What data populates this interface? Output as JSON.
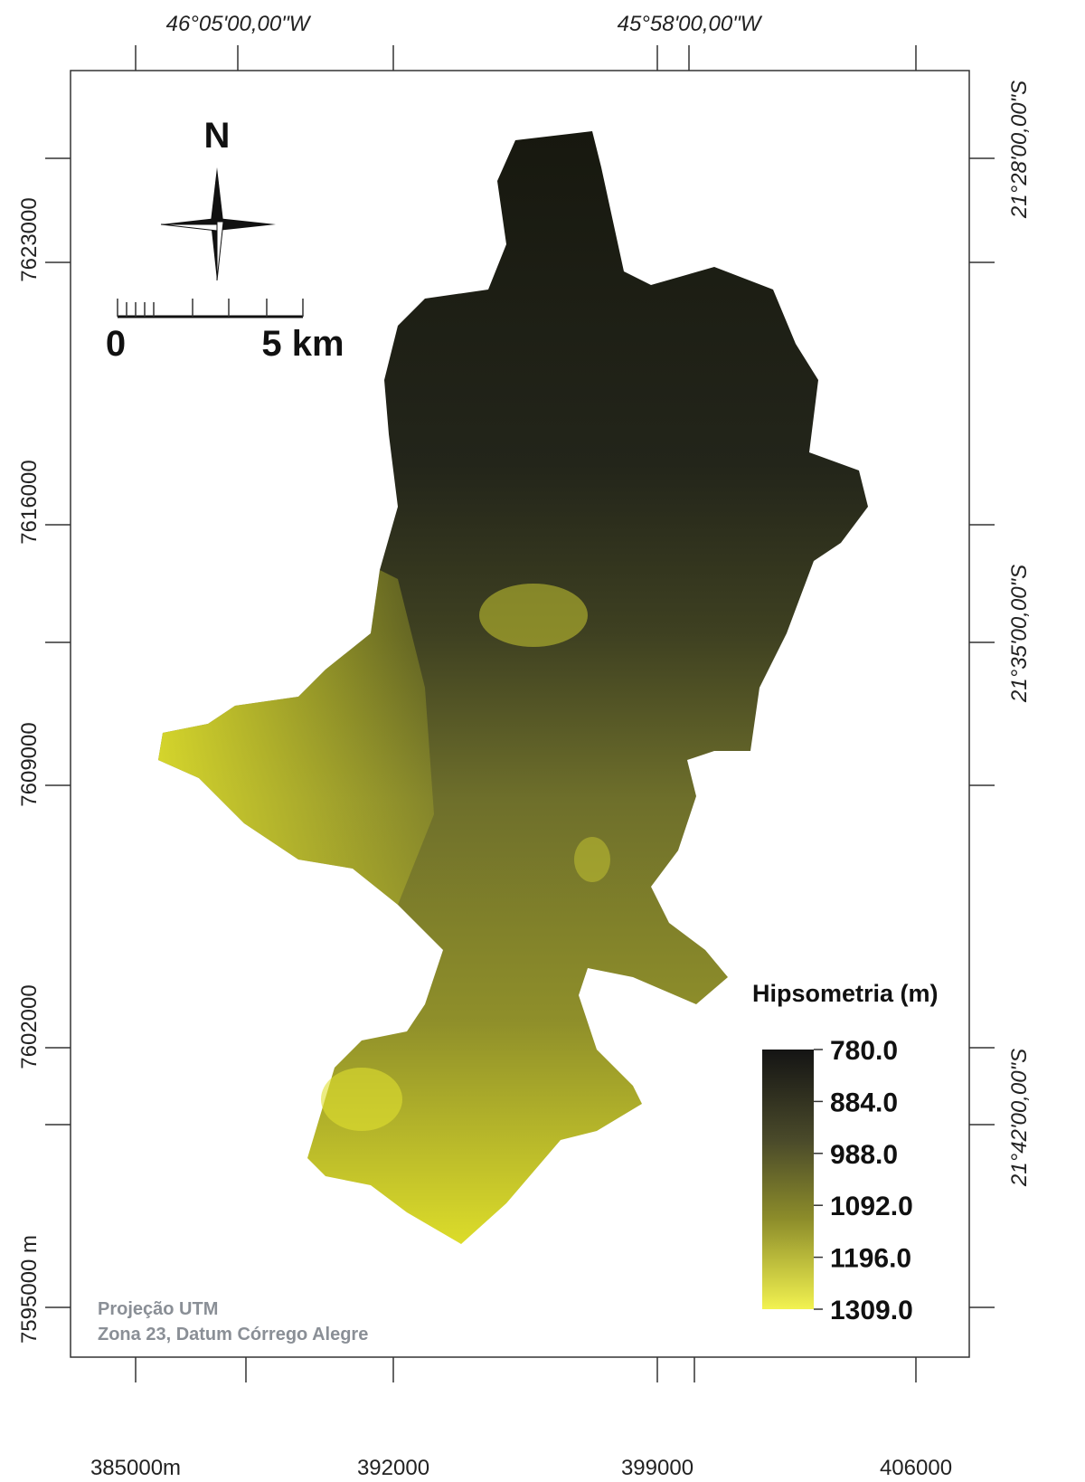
{
  "map": {
    "top_labels": [
      "46°05'00,00\"W",
      "45°58'00,00\"W"
    ],
    "right_labels": [
      "21°28'00,00\"S",
      "21°35'00,00\"S",
      "21°42'00,00\"S"
    ],
    "left_labels": [
      "7623000",
      "7616000",
      "7609000",
      "7602000",
      "7595000 m"
    ],
    "bottom_labels": [
      "385000m",
      "392000",
      "399000",
      "406000"
    ],
    "north": "N",
    "scale_bar": {
      "start": "0",
      "end": "5 km"
    },
    "legend": {
      "title": "Hipsometria (m)",
      "labels": [
        "780.0",
        "884.0",
        "988.0",
        "1092.0",
        "1196.0",
        "1309.0"
      ]
    },
    "note": [
      "Projeção UTM",
      "Zona 23, Datum Córrego Alegre"
    ]
  }
}
